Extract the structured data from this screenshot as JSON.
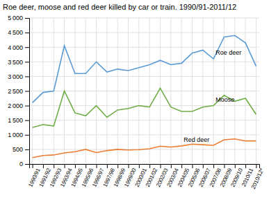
{
  "chart_data": {
    "type": "line",
    "title": "Roe deer, moose and red deer killed by car or train. 1990/91-2011/12",
    "categories": [
      "1990/91",
      "1991/92",
      "1992/93",
      "1993/94",
      "1994/95",
      "1995/96",
      "1996/97",
      "1997/98",
      "1998/99",
      "1999/00",
      "2000/01",
      "2001/02",
      "2002/03",
      "2003/04",
      "2004/05",
      "2005/06",
      "2006/07",
      "2007/08",
      "2008/09",
      "2009/10",
      "2010/11",
      "2010/12*"
    ],
    "series": [
      {
        "name": "Roe deer",
        "color": "#5B9BD5",
        "values": [
          2100,
          2450,
          2500,
          4050,
          3100,
          3100,
          3500,
          3150,
          3250,
          3200,
          3300,
          3400,
          3550,
          3400,
          3450,
          3800,
          3900,
          3600,
          4350,
          4400,
          4150,
          3350
        ]
      },
      {
        "name": "Moose",
        "color": "#70AD47",
        "values": [
          1250,
          1350,
          1300,
          2500,
          1750,
          1650,
          2000,
          1600,
          1850,
          1900,
          2000,
          1950,
          2600,
          1950,
          1800,
          1800,
          1950,
          2000,
          2350,
          2150,
          2250,
          1700
        ]
      },
      {
        "name": "Red deer",
        "color": "#ED7D31",
        "values": [
          220,
          290,
          310,
          380,
          420,
          500,
          390,
          460,
          500,
          480,
          490,
          520,
          610,
          580,
          620,
          680,
          660,
          640,
          830,
          860,
          790,
          790
        ]
      }
    ],
    "ylim": [
      0,
      5000
    ],
    "yticks": [
      0,
      500,
      {
        "value": 1000,
        "label": "1 000"
      },
      {
        "value": 1500,
        "label": "1 500"
      },
      {
        "value": 2000,
        "label": "2 000"
      },
      {
        "value": 2500,
        "label": "2 500"
      },
      {
        "value": 3000,
        "label": "3 000"
      },
      {
        "value": 3500,
        "label": "3 500"
      },
      {
        "value": 4000,
        "label": "4 000"
      },
      {
        "value": 4500,
        "label": "4 500"
      },
      {
        "value": 5000,
        "label": "5 000"
      }
    ],
    "grid": true
  }
}
